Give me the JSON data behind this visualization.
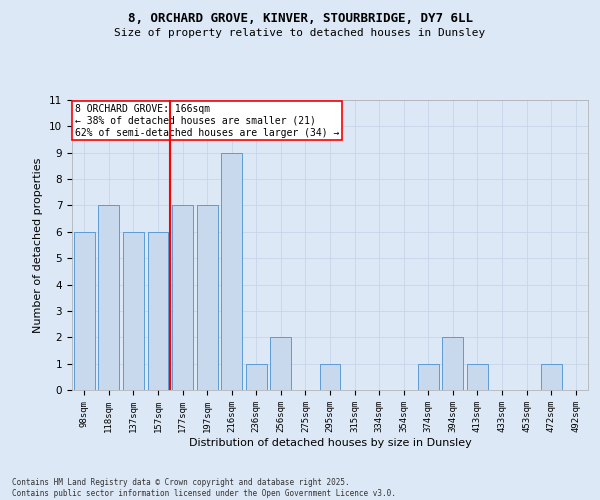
{
  "title_line1": "8, ORCHARD GROVE, KINVER, STOURBRIDGE, DY7 6LL",
  "title_line2": "Size of property relative to detached houses in Dunsley",
  "xlabel": "Distribution of detached houses by size in Dunsley",
  "ylabel": "Number of detached properties",
  "categories": [
    "98sqm",
    "118sqm",
    "137sqm",
    "157sqm",
    "177sqm",
    "197sqm",
    "216sqm",
    "236sqm",
    "256sqm",
    "275sqm",
    "295sqm",
    "315sqm",
    "334sqm",
    "354sqm",
    "374sqm",
    "394sqm",
    "413sqm",
    "433sqm",
    "453sqm",
    "472sqm",
    "492sqm"
  ],
  "values": [
    6,
    7,
    6,
    6,
    7,
    7,
    9,
    1,
    2,
    0,
    1,
    0,
    0,
    0,
    1,
    2,
    1,
    0,
    0,
    1,
    0
  ],
  "bar_color": "#c9d9ed",
  "bar_edge_color": "#5b9bd5",
  "grid_color": "#c8d4e8",
  "bg_color": "#dce8f5",
  "vline_x": 3.5,
  "vline_color": "red",
  "annotation_text": "8 ORCHARD GROVE: 166sqm\n← 38% of detached houses are smaller (21)\n62% of semi-detached houses are larger (34) →",
  "annotation_box_color": "white",
  "annotation_box_edge": "red",
  "ylim": [
    0,
    11
  ],
  "yticks": [
    0,
    1,
    2,
    3,
    4,
    5,
    6,
    7,
    8,
    9,
    10,
    11
  ],
  "footer": "Contains HM Land Registry data © Crown copyright and database right 2025.\nContains public sector information licensed under the Open Government Licence v3.0."
}
